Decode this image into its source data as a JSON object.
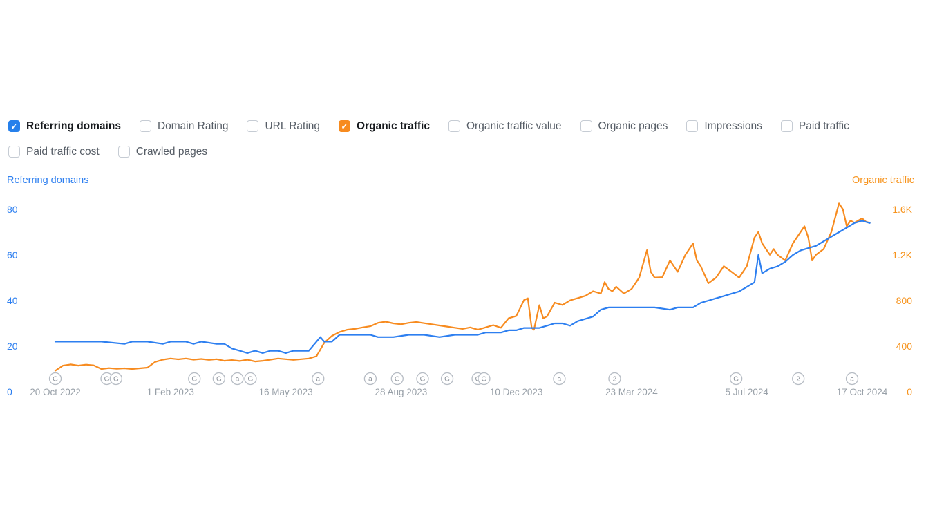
{
  "controls": {
    "check_icon": "✓",
    "items": [
      {
        "label": "Referring domains",
        "checked": true,
        "color": "#2680eb"
      },
      {
        "label": "Domain Rating",
        "checked": false
      },
      {
        "label": "URL Rating",
        "checked": false
      },
      {
        "label": "Organic traffic",
        "checked": true,
        "color": "#f78b1f"
      },
      {
        "label": "Organic traffic value",
        "checked": false
      },
      {
        "label": "Organic pages",
        "checked": false
      },
      {
        "label": "Impressions",
        "checked": false
      },
      {
        "label": "Paid traffic",
        "checked": false
      },
      {
        "label": "Paid traffic cost",
        "checked": false
      },
      {
        "label": "Crawled pages",
        "checked": false
      }
    ]
  },
  "chart_data": {
    "type": "line",
    "title": "",
    "x_unit": "weeks since 20 Oct 2022",
    "x_ticks": [
      {
        "week": 0,
        "label": "20 Oct 2022"
      },
      {
        "week": 15,
        "label": "1 Feb 2023"
      },
      {
        "week": 30,
        "label": "16 May 2023"
      },
      {
        "week": 45,
        "label": "28 Aug 2023"
      },
      {
        "week": 60,
        "label": "10 Dec 2023"
      },
      {
        "week": 75,
        "label": "23 Mar 2024"
      },
      {
        "week": 90,
        "label": "5 Jul 2024"
      },
      {
        "week": 105,
        "label": "17 Oct 2024"
      }
    ],
    "left_axis": {
      "label": "Referring domains",
      "color": "#2d7ff0",
      "tick_values": [
        0,
        20,
        40,
        60,
        80
      ],
      "tick_labels": [
        "0",
        "20",
        "40",
        "60",
        "80"
      ],
      "min": 0,
      "max": 90
    },
    "right_axis": {
      "label": "Organic traffic",
      "color": "#f7941e",
      "tick_values": [
        0,
        400,
        800,
        1200,
        1600
      ],
      "tick_labels": [
        "0",
        "400",
        "800",
        "1.2K",
        "1.6K"
      ],
      "min": 0,
      "max": 1800
    },
    "grid": false,
    "legend_position": "axis-titles",
    "series": [
      {
        "name": "Organic traffic",
        "axis": "right",
        "color": "#f78b1f",
        "points": [
          [
            0,
            185
          ],
          [
            1,
            230
          ],
          [
            2,
            240
          ],
          [
            3,
            230
          ],
          [
            4,
            238
          ],
          [
            5,
            232
          ],
          [
            6,
            200
          ],
          [
            7,
            208
          ],
          [
            8,
            202
          ],
          [
            9,
            206
          ],
          [
            10,
            200
          ],
          [
            11,
            206
          ],
          [
            12,
            212
          ],
          [
            13,
            262
          ],
          [
            14,
            282
          ],
          [
            15,
            292
          ],
          [
            16,
            285
          ],
          [
            17,
            292
          ],
          [
            18,
            282
          ],
          [
            19,
            288
          ],
          [
            20,
            280
          ],
          [
            21,
            286
          ],
          [
            22,
            272
          ],
          [
            23,
            278
          ],
          [
            24,
            270
          ],
          [
            25,
            282
          ],
          [
            26,
            266
          ],
          [
            27,
            272
          ],
          [
            28,
            282
          ],
          [
            29,
            292
          ],
          [
            30,
            286
          ],
          [
            31,
            280
          ],
          [
            32,
            286
          ],
          [
            33,
            292
          ],
          [
            34,
            312
          ],
          [
            35,
            430
          ],
          [
            36,
            490
          ],
          [
            37,
            525
          ],
          [
            38,
            545
          ],
          [
            39,
            552
          ],
          [
            40,
            565
          ],
          [
            41,
            575
          ],
          [
            42,
            605
          ],
          [
            43,
            615
          ],
          [
            44,
            600
          ],
          [
            45,
            592
          ],
          [
            46,
            605
          ],
          [
            47,
            612
          ],
          [
            48,
            602
          ],
          [
            49,
            592
          ],
          [
            50,
            582
          ],
          [
            51,
            572
          ],
          [
            52,
            562
          ],
          [
            53,
            552
          ],
          [
            54,
            565
          ],
          [
            55,
            545
          ],
          [
            56,
            565
          ],
          [
            57,
            585
          ],
          [
            58,
            562
          ],
          [
            59,
            645
          ],
          [
            60,
            665
          ],
          [
            61,
            805
          ],
          [
            61.5,
            820
          ],
          [
            62,
            560
          ],
          [
            62.3,
            545
          ],
          [
            63,
            760
          ],
          [
            63.5,
            645
          ],
          [
            64,
            662
          ],
          [
            65,
            782
          ],
          [
            66,
            762
          ],
          [
            67,
            802
          ],
          [
            68,
            822
          ],
          [
            69,
            842
          ],
          [
            70,
            882
          ],
          [
            71,
            862
          ],
          [
            71.5,
            962
          ],
          [
            72,
            902
          ],
          [
            72.5,
            882
          ],
          [
            73,
            922
          ],
          [
            74,
            862
          ],
          [
            75,
            902
          ],
          [
            76,
            1002
          ],
          [
            77,
            1242
          ],
          [
            77.5,
            1052
          ],
          [
            78,
            1002
          ],
          [
            79,
            1005
          ],
          [
            80,
            1152
          ],
          [
            80.5,
            1102
          ],
          [
            81,
            1052
          ],
          [
            82,
            1202
          ],
          [
            83,
            1302
          ],
          [
            83.5,
            1152
          ],
          [
            84,
            1102
          ],
          [
            85,
            952
          ],
          [
            86,
            1002
          ],
          [
            87,
            1102
          ],
          [
            88,
            1052
          ],
          [
            89,
            1002
          ],
          [
            90,
            1102
          ],
          [
            91,
            1352
          ],
          [
            91.5,
            1402
          ],
          [
            92,
            1302
          ],
          [
            93,
            1202
          ],
          [
            93.5,
            1252
          ],
          [
            94,
            1202
          ],
          [
            95,
            1152
          ],
          [
            96,
            1302
          ],
          [
            97,
            1402
          ],
          [
            97.5,
            1452
          ],
          [
            98,
            1352
          ],
          [
            98.5,
            1152
          ],
          [
            99,
            1202
          ],
          [
            100,
            1252
          ],
          [
            101,
            1402
          ],
          [
            102,
            1652
          ],
          [
            102.5,
            1602
          ],
          [
            103,
            1452
          ],
          [
            103.5,
            1502
          ],
          [
            104,
            1482
          ],
          [
            105,
            1522
          ],
          [
            105.5,
            1492
          ],
          [
            106,
            1482
          ]
        ]
      },
      {
        "name": "Referring domains",
        "axis": "left",
        "color": "#2d7ff0",
        "points": [
          [
            0,
            22
          ],
          [
            3,
            22
          ],
          [
            6,
            22
          ],
          [
            9,
            21
          ],
          [
            10,
            22
          ],
          [
            12,
            22
          ],
          [
            14,
            21
          ],
          [
            15,
            22
          ],
          [
            17,
            22
          ],
          [
            18,
            21
          ],
          [
            19,
            22
          ],
          [
            21,
            21
          ],
          [
            22,
            21
          ],
          [
            23,
            19
          ],
          [
            24,
            18
          ],
          [
            25,
            17
          ],
          [
            26,
            18
          ],
          [
            27,
            17
          ],
          [
            28,
            18
          ],
          [
            29,
            18
          ],
          [
            30,
            17
          ],
          [
            31,
            18
          ],
          [
            33,
            18
          ],
          [
            34,
            22
          ],
          [
            34.5,
            24
          ],
          [
            35,
            22
          ],
          [
            36,
            22
          ],
          [
            37,
            25
          ],
          [
            39,
            25
          ],
          [
            41,
            25
          ],
          [
            42,
            24
          ],
          [
            44,
            24
          ],
          [
            46,
            25
          ],
          [
            48,
            25
          ],
          [
            50,
            24
          ],
          [
            52,
            25
          ],
          [
            54,
            25
          ],
          [
            55,
            25
          ],
          [
            56,
            26
          ],
          [
            58,
            26
          ],
          [
            59,
            27
          ],
          [
            60,
            27
          ],
          [
            61,
            28
          ],
          [
            63,
            28
          ],
          [
            64,
            29
          ],
          [
            65,
            30
          ],
          [
            66,
            30
          ],
          [
            67,
            29
          ],
          [
            68,
            31
          ],
          [
            69,
            32
          ],
          [
            70,
            33
          ],
          [
            71,
            36
          ],
          [
            72,
            37
          ],
          [
            74,
            37
          ],
          [
            76,
            37
          ],
          [
            78,
            37
          ],
          [
            80,
            36
          ],
          [
            81,
            37
          ],
          [
            83,
            37
          ],
          [
            84,
            39
          ],
          [
            85,
            40
          ],
          [
            86,
            41
          ],
          [
            87,
            42
          ],
          [
            88,
            43
          ],
          [
            89,
            44
          ],
          [
            90,
            46
          ],
          [
            91,
            48
          ],
          [
            91.5,
            60
          ],
          [
            92,
            52
          ],
          [
            93,
            54
          ],
          [
            94,
            55
          ],
          [
            95,
            57
          ],
          [
            96,
            60
          ],
          [
            97,
            62
          ],
          [
            98,
            63
          ],
          [
            99,
            64
          ],
          [
            100,
            66
          ],
          [
            101,
            68
          ],
          [
            102,
            70
          ],
          [
            103,
            72
          ],
          [
            104,
            74
          ],
          [
            105,
            75
          ],
          [
            106,
            74
          ]
        ]
      }
    ],
    "events": [
      {
        "week": 0,
        "label": "G"
      },
      {
        "week": 6.7,
        "label": "G"
      },
      {
        "week": 7.9,
        "label": "G"
      },
      {
        "week": 18.1,
        "label": "G"
      },
      {
        "week": 21.3,
        "label": "G"
      },
      {
        "week": 23.7,
        "label": "a"
      },
      {
        "week": 25.4,
        "label": "G"
      },
      {
        "week": 34.2,
        "label": "a"
      },
      {
        "week": 41.0,
        "label": "a"
      },
      {
        "week": 44.5,
        "label": "G"
      },
      {
        "week": 47.8,
        "label": "G"
      },
      {
        "week": 51.0,
        "label": "G"
      },
      {
        "week": 55.0,
        "label": "G"
      },
      {
        "week": 55.8,
        "label": "G"
      },
      {
        "week": 65.6,
        "label": "a"
      },
      {
        "week": 72.8,
        "label": "2"
      },
      {
        "week": 88.6,
        "label": "G"
      },
      {
        "week": 96.7,
        "label": "2"
      },
      {
        "week": 103.7,
        "label": "a"
      }
    ],
    "event_marker_style": {
      "fill": "#ffffff",
      "stroke": "#b6bcc4",
      "text_color": "#8a9098"
    },
    "x_tick_color": "#98a0a8"
  }
}
